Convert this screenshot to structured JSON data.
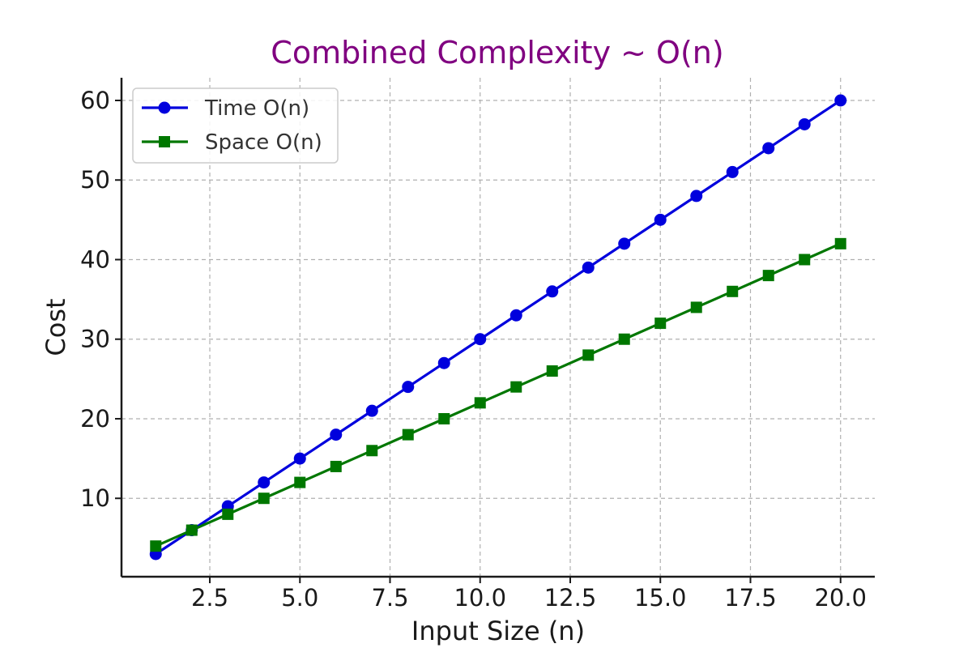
{
  "chart_data": {
    "type": "line",
    "title": "Combined Complexity ~ O(n)",
    "title_color": "#800080",
    "xlabel": "Input Size (n)",
    "ylabel": "Cost",
    "x": [
      1,
      2,
      3,
      4,
      5,
      6,
      7,
      8,
      9,
      10,
      11,
      12,
      13,
      14,
      15,
      16,
      17,
      18,
      19,
      20
    ],
    "xlim": [
      0.05,
      20.95
    ],
    "ylim": [
      0.15,
      62.85
    ],
    "x_ticks": [
      2.5,
      5.0,
      7.5,
      10.0,
      12.5,
      15.0,
      17.5,
      20.0
    ],
    "x_tick_labels": [
      "2.5",
      "5.0",
      "7.5",
      "10.0",
      "12.5",
      "15.0",
      "17.5",
      "20.0"
    ],
    "y_ticks": [
      10,
      20,
      30,
      40,
      50,
      60
    ],
    "y_tick_labels": [
      "10",
      "20",
      "30",
      "40",
      "50",
      "60"
    ],
    "grid": true,
    "legend_position": "top-left",
    "series": [
      {
        "name": "Time O(n)",
        "color": "#0000dd",
        "marker": "circle",
        "values": [
          3,
          6,
          9,
          12,
          15,
          18,
          21,
          24,
          27,
          30,
          33,
          36,
          39,
          42,
          45,
          48,
          51,
          54,
          57,
          60
        ]
      },
      {
        "name": "Space O(n)",
        "color": "#007700",
        "marker": "square",
        "values": [
          4,
          6,
          8,
          10,
          12,
          14,
          16,
          18,
          20,
          22,
          24,
          26,
          28,
          30,
          32,
          34,
          36,
          38,
          40,
          42
        ]
      }
    ]
  }
}
